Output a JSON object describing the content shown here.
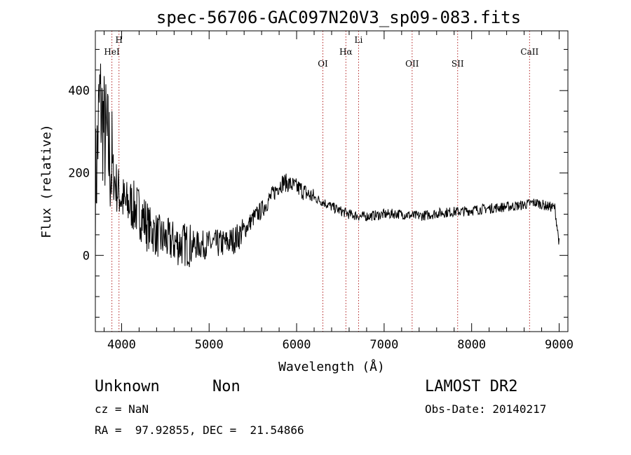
{
  "chart_data": {
    "type": "line",
    "title": "spec-56706-GAC097N20V3_sp09-083.fits",
    "xlabel": "Wavelength (Å)",
    "ylabel": "Flux (relative)",
    "xlim": [
      3700,
      9100
    ],
    "ylim": [
      -185,
      545
    ],
    "xticks": [
      4000,
      5000,
      6000,
      7000,
      8000,
      9000
    ],
    "yticks": [
      0,
      200,
      400
    ],
    "grid": false,
    "series": [
      {
        "x": [
          3700,
          3750,
          3800,
          3850,
          3900,
          3950,
          4000,
          4050,
          4100,
          4150,
          4200,
          4250,
          4300,
          4350,
          4400,
          4450,
          4500,
          4550,
          4600,
          4650,
          4700,
          4750,
          4800,
          4850,
          4900,
          4950,
          5000,
          5050,
          5100,
          5150,
          5200,
          5250,
          5300,
          5350,
          5400,
          5450,
          5500,
          5550,
          5600,
          5650,
          5700,
          5750,
          5800,
          5850,
          5900,
          5950,
          6000,
          6050,
          6100,
          6150,
          6200,
          6250,
          6300,
          6350,
          6400,
          6450,
          6500,
          6550,
          6600,
          6650,
          6700,
          6750,
          6800,
          6850,
          6900,
          6950,
          7000,
          7050,
          7100,
          7150,
          7200,
          7250,
          7300,
          7350,
          7400,
          7450,
          7500,
          7550,
          7600,
          7650,
          7700,
          7750,
          7800,
          7850,
          7900,
          7950,
          8000,
          8050,
          8100,
          8150,
          8200,
          8250,
          8300,
          8350,
          8400,
          8450,
          8500,
          8550,
          8600,
          8650,
          8700,
          8750,
          8800,
          8850,
          8900,
          8950,
          9000
        ],
        "y": [
          150,
          380,
          300,
          250,
          200,
          160,
          140,
          120,
          125,
          115,
          105,
          90,
          70,
          60,
          50,
          42,
          38,
          35,
          32,
          28,
          27,
          26,
          25,
          25,
          25,
          26,
          27,
          28,
          28,
          29,
          30,
          35,
          40,
          50,
          60,
          75,
          90,
          100,
          110,
          125,
          140,
          155,
          170,
          178,
          175,
          170,
          165,
          160,
          152,
          146,
          140,
          135,
          130,
          124,
          118,
          113,
          108,
          104,
          100,
          98,
          96,
          94,
          95,
          96,
          97,
          98,
          100,
          100,
          101,
          101,
          100,
          99,
          97,
          96,
          96,
          97,
          98,
          100,
          102,
          103,
          104,
          105,
          106,
          106,
          107,
          108,
          110,
          111,
          112,
          113,
          114,
          115,
          116,
          117,
          118,
          119,
          120,
          121,
          123,
          125,
          128,
          127,
          124,
          120,
          118,
          116,
          30
        ]
      }
    ],
    "lines": [
      {
        "label": "HeI",
        "x": 3889
      },
      {
        "label": "H",
        "x": 3970
      },
      {
        "label": "OI",
        "x": 6300
      },
      {
        "label": "Hα",
        "x": 6563
      },
      {
        "label": "Li",
        "x": 6708
      },
      {
        "label": "OII",
        "x": 7320
      },
      {
        "label": "SII",
        "x": 7840
      },
      {
        "label": "CaII",
        "x": 8662
      }
    ]
  },
  "info": {
    "class": "Unknown",
    "subclass": "Non",
    "survey": "LAMOST DR2",
    "cz": "cz = NaN",
    "obs_date": "Obs-Date: 20140217",
    "coords": "RA =  97.92855, DEC =  21.54866"
  }
}
